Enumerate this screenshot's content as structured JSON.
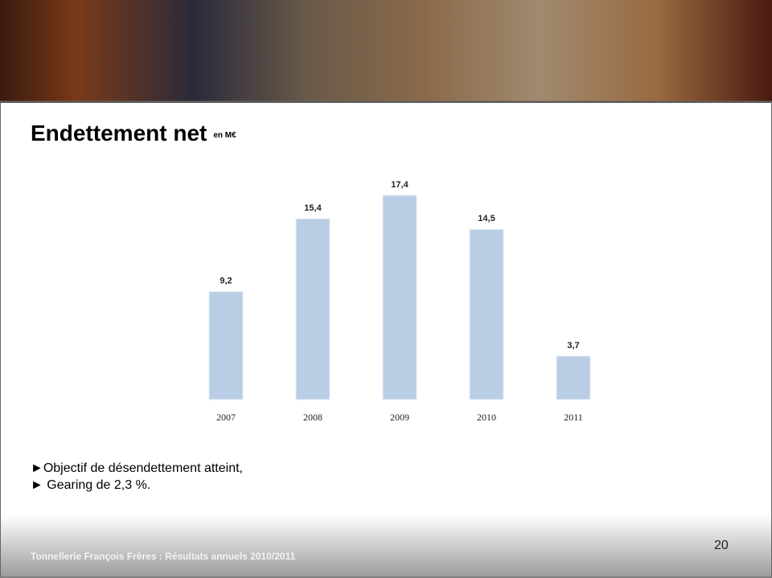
{
  "chart_data": {
    "type": "bar",
    "title": "Endettement net",
    "subtitle": "en M€",
    "categories": [
      "2007",
      "2008",
      "2009",
      "2010",
      "2011"
    ],
    "values": [
      9.2,
      15.4,
      17.4,
      14.5,
      3.7
    ],
    "value_labels": [
      "9,2",
      "15,4",
      "17,4",
      "14,5",
      "3,7"
    ],
    "color": "#b9cde5",
    "ylim": [
      0,
      20
    ],
    "grid": false
  },
  "bullets": [
    "►Objectif de désendettement atteint,",
    "► Gearing de 2,3 %."
  ],
  "footer": "Tonnellerie François Frères : Résultats annuels 2010/2011",
  "page_number": "20"
}
